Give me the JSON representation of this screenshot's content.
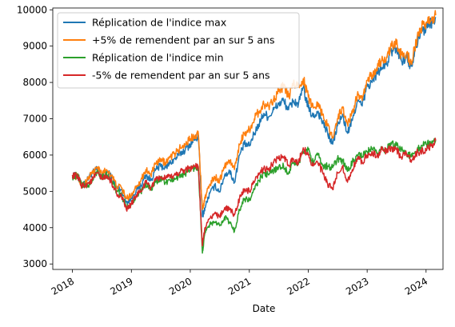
{
  "chart_data": {
    "type": "line",
    "title": "",
    "xlabel": "Date",
    "ylabel": "",
    "x_axis_kind": "date",
    "xlim": [
      "2017-09-01",
      "2024-04-15"
    ],
    "ylim": [
      2850,
      10050
    ],
    "x_ticks": [
      {
        "date": "2018-01-01",
        "label": "2018"
      },
      {
        "date": "2019-01-01",
        "label": "2019"
      },
      {
        "date": "2020-01-01",
        "label": "2020"
      },
      {
        "date": "2021-01-01",
        "label": "2021"
      },
      {
        "date": "2022-01-01",
        "label": "2022"
      },
      {
        "date": "2023-01-01",
        "label": "2023"
      },
      {
        "date": "2024-01-01",
        "label": "2024"
      }
    ],
    "y_ticks": [
      3000,
      4000,
      5000,
      6000,
      7000,
      8000,
      9000,
      10000
    ],
    "grid": false,
    "legend_position": "upper-left",
    "series": [
      {
        "name": "Réplication de l'indice max",
        "color": "#1f77b4",
        "x": [
          "2018-01-01",
          "2018-02-01",
          "2018-03-01",
          "2018-04-01",
          "2018-05-01",
          "2018-06-01",
          "2018-07-01",
          "2018-08-01",
          "2018-09-01",
          "2018-10-01",
          "2018-11-01",
          "2018-12-01",
          "2019-01-01",
          "2019-02-01",
          "2019-03-01",
          "2019-04-01",
          "2019-05-01",
          "2019-06-01",
          "2019-07-01",
          "2019-08-01",
          "2019-09-01",
          "2019-10-01",
          "2019-11-01",
          "2019-12-01",
          "2020-01-01",
          "2020-02-01",
          "2020-02-20",
          "2020-03-16",
          "2020-04-01",
          "2020-05-01",
          "2020-06-01",
          "2020-07-01",
          "2020-08-01",
          "2020-09-01",
          "2020-10-01",
          "2020-11-01",
          "2020-12-01",
          "2021-01-01",
          "2021-02-01",
          "2021-03-01",
          "2021-04-01",
          "2021-05-01",
          "2021-06-01",
          "2021-07-01",
          "2021-08-01",
          "2021-09-01",
          "2021-10-01",
          "2021-11-01",
          "2021-12-01",
          "2022-01-01",
          "2022-02-01",
          "2022-03-01",
          "2022-04-01",
          "2022-05-01",
          "2022-06-01",
          "2022-07-01",
          "2022-08-01",
          "2022-09-01",
          "2022-10-01",
          "2022-11-01",
          "2022-12-01",
          "2023-01-01",
          "2023-02-01",
          "2023-03-01",
          "2023-04-01",
          "2023-05-01",
          "2023-06-01",
          "2023-07-01",
          "2023-08-01",
          "2023-09-01",
          "2023-10-01",
          "2023-11-01",
          "2023-12-01",
          "2024-01-01",
          "2024-02-01",
          "2024-03-01"
        ],
        "values": [
          5450,
          5400,
          5150,
          5300,
          5500,
          5600,
          5450,
          5550,
          5400,
          5100,
          5050,
          4700,
          4800,
          5050,
          5150,
          5450,
          5300,
          5600,
          5700,
          5650,
          5800,
          5900,
          6050,
          6150,
          6300,
          6450,
          6500,
          4300,
          4550,
          4950,
          5150,
          5000,
          5450,
          5550,
          5250,
          6000,
          6300,
          6250,
          6600,
          6850,
          7150,
          7050,
          7250,
          7400,
          7500,
          7250,
          7500,
          7400,
          7850,
          7300,
          7050,
          7200,
          6900,
          6600,
          6300,
          6800,
          7100,
          6600,
          6950,
          7500,
          7350,
          7900,
          8000,
          8250,
          8400,
          8500,
          8850,
          8950,
          8600,
          8700,
          8450,
          9050,
          9400,
          9500,
          9650,
          9800
        ]
      },
      {
        "name": "+5% de remendent par an sur 5 ans",
        "color": "#ff7f0e",
        "x": [
          "2018-01-01",
          "2018-02-01",
          "2018-03-01",
          "2018-04-01",
          "2018-05-01",
          "2018-06-01",
          "2018-07-01",
          "2018-08-01",
          "2018-09-01",
          "2018-10-01",
          "2018-11-01",
          "2018-12-01",
          "2019-01-01",
          "2019-02-01",
          "2019-03-01",
          "2019-04-01",
          "2019-05-01",
          "2019-06-01",
          "2019-07-01",
          "2019-08-01",
          "2019-09-01",
          "2019-10-01",
          "2019-11-01",
          "2019-12-01",
          "2020-01-01",
          "2020-02-01",
          "2020-02-20",
          "2020-03-16",
          "2020-04-01",
          "2020-05-01",
          "2020-06-01",
          "2020-07-01",
          "2020-08-01",
          "2020-09-01",
          "2020-10-01",
          "2020-11-01",
          "2020-12-01",
          "2021-01-01",
          "2021-02-01",
          "2021-03-01",
          "2021-04-01",
          "2021-05-01",
          "2021-06-01",
          "2021-07-01",
          "2021-08-01",
          "2021-09-01",
          "2021-10-01",
          "2021-11-01",
          "2021-12-01",
          "2022-01-01",
          "2022-02-01",
          "2022-03-01",
          "2022-04-01",
          "2022-05-01",
          "2022-06-01",
          "2022-07-01",
          "2022-08-01",
          "2022-09-01",
          "2022-10-01",
          "2022-11-01",
          "2022-12-01",
          "2023-01-01",
          "2023-02-01",
          "2023-03-01",
          "2023-04-01",
          "2023-05-01",
          "2023-06-01",
          "2023-07-01",
          "2023-08-01",
          "2023-09-01",
          "2023-10-01",
          "2023-11-01",
          "2023-12-01",
          "2024-01-01",
          "2024-02-01",
          "2024-03-01"
        ],
        "values": [
          5450,
          5400,
          5150,
          5300,
          5500,
          5650,
          5500,
          5600,
          5450,
          5150,
          5100,
          4800,
          4900,
          5150,
          5300,
          5600,
          5450,
          5750,
          5850,
          5800,
          5950,
          6050,
          6200,
          6300,
          6450,
          6550,
          6600,
          4500,
          4800,
          5200,
          5400,
          5300,
          5700,
          5850,
          5600,
          6300,
          6600,
          6700,
          7000,
          7200,
          7400,
          7350,
          7550,
          7750,
          7900,
          7600,
          7950,
          7900,
          8100,
          7600,
          7300,
          7450,
          7100,
          6800,
          6500,
          7000,
          7300,
          6850,
          7150,
          7650,
          7500,
          8050,
          8200,
          8400,
          8600,
          8700,
          9000,
          9050,
          8750,
          8800,
          8550,
          9100,
          9500,
          9650,
          9700,
          9850
        ]
      },
      {
        "name": "Réplication de l'indice min",
        "color": "#2ca02c",
        "x": [
          "2018-01-01",
          "2018-02-01",
          "2018-03-01",
          "2018-04-01",
          "2018-05-01",
          "2018-06-01",
          "2018-07-01",
          "2018-08-01",
          "2018-09-01",
          "2018-10-01",
          "2018-11-01",
          "2018-12-01",
          "2019-01-01",
          "2019-02-01",
          "2019-03-01",
          "2019-04-01",
          "2019-05-01",
          "2019-06-01",
          "2019-07-01",
          "2019-08-01",
          "2019-09-01",
          "2019-10-01",
          "2019-11-01",
          "2019-12-01",
          "2020-01-01",
          "2020-02-01",
          "2020-02-20",
          "2020-03-16",
          "2020-04-01",
          "2020-05-01",
          "2020-06-01",
          "2020-07-01",
          "2020-08-01",
          "2020-09-01",
          "2020-10-01",
          "2020-11-01",
          "2020-12-01",
          "2021-01-01",
          "2021-02-01",
          "2021-03-01",
          "2021-04-01",
          "2021-05-01",
          "2021-06-01",
          "2021-07-01",
          "2021-08-01",
          "2021-09-01",
          "2021-10-01",
          "2021-11-01",
          "2021-12-01",
          "2022-01-01",
          "2022-02-01",
          "2022-03-01",
          "2022-04-01",
          "2022-05-01",
          "2022-06-01",
          "2022-07-01",
          "2022-08-01",
          "2022-09-01",
          "2022-10-01",
          "2022-11-01",
          "2022-12-01",
          "2023-01-01",
          "2023-02-01",
          "2023-03-01",
          "2023-04-01",
          "2023-05-01",
          "2023-06-01",
          "2023-07-01",
          "2023-08-01",
          "2023-09-01",
          "2023-10-01",
          "2023-11-01",
          "2023-12-01",
          "2024-01-01",
          "2024-02-01",
          "2024-03-01"
        ],
        "values": [
          5400,
          5450,
          5200,
          5150,
          5250,
          5550,
          5400,
          5450,
          5300,
          5000,
          4900,
          4550,
          4650,
          4900,
          5000,
          5200,
          5050,
          5250,
          5350,
          5250,
          5300,
          5350,
          5450,
          5500,
          5600,
          5650,
          5650,
          3300,
          3850,
          4100,
          4150,
          4050,
          4300,
          4150,
          3900,
          4500,
          4800,
          4750,
          5050,
          5300,
          5500,
          5450,
          5600,
          5650,
          5700,
          5500,
          5800,
          5750,
          6100,
          6150,
          5800,
          6000,
          5700,
          5700,
          5650,
          5900,
          5850,
          5550,
          5800,
          6000,
          5950,
          6100,
          6150,
          6050,
          6200,
          6150,
          6300,
          6300,
          6150,
          6050,
          5950,
          6100,
          6250,
          6300,
          6350,
          6400
        ]
      },
      {
        "name": "-5% de remendent par an sur 5 ans",
        "color": "#d62728",
        "x": [
          "2018-01-01",
          "2018-02-01",
          "2018-03-01",
          "2018-04-01",
          "2018-05-01",
          "2018-06-01",
          "2018-07-01",
          "2018-08-01",
          "2018-09-01",
          "2018-10-01",
          "2018-11-01",
          "2018-12-01",
          "2019-01-01",
          "2019-02-01",
          "2019-03-01",
          "2019-04-01",
          "2019-05-01",
          "2019-06-01",
          "2019-07-01",
          "2019-08-01",
          "2019-09-01",
          "2019-10-01",
          "2019-11-01",
          "2019-12-01",
          "2020-01-01",
          "2020-02-01",
          "2020-02-20",
          "2020-03-16",
          "2020-04-01",
          "2020-05-01",
          "2020-06-01",
          "2020-07-01",
          "2020-08-01",
          "2020-09-01",
          "2020-10-01",
          "2020-11-01",
          "2020-12-01",
          "2021-01-01",
          "2021-02-01",
          "2021-03-01",
          "2021-04-01",
          "2021-05-01",
          "2021-06-01",
          "2021-07-01",
          "2021-08-01",
          "2021-09-01",
          "2021-10-01",
          "2021-11-01",
          "2021-12-01",
          "2022-01-01",
          "2022-02-01",
          "2022-03-01",
          "2022-04-01",
          "2022-05-01",
          "2022-06-01",
          "2022-07-01",
          "2022-08-01",
          "2022-09-01",
          "2022-10-01",
          "2022-11-01",
          "2022-12-01",
          "2023-01-01",
          "2023-02-01",
          "2023-03-01",
          "2023-04-01",
          "2023-05-01",
          "2023-06-01",
          "2023-07-01",
          "2023-08-01",
          "2023-09-01",
          "2023-10-01",
          "2023-11-01",
          "2023-12-01",
          "2024-01-01",
          "2024-02-01",
          "2024-03-01"
        ],
        "values": [
          5450,
          5400,
          5150,
          5200,
          5300,
          5500,
          5350,
          5400,
          5250,
          4950,
          4850,
          4500,
          4650,
          4900,
          5000,
          5250,
          5100,
          5300,
          5400,
          5350,
          5400,
          5450,
          5550,
          5600,
          5650,
          5700,
          5650,
          3500,
          4000,
          4250,
          4400,
          4300,
          4550,
          4500,
          4350,
          4800,
          5050,
          5000,
          5250,
          5450,
          5650,
          5600,
          5800,
          5900,
          5950,
          5700,
          5900,
          5800,
          6200,
          6000,
          5700,
          5800,
          5500,
          5200,
          5050,
          5500,
          5700,
          5250,
          5600,
          5900,
          5800,
          6000,
          6100,
          5950,
          6150,
          6100,
          6200,
          6150,
          5950,
          6050,
          5800,
          6050,
          6100,
          6150,
          6250,
          6400
        ]
      }
    ]
  }
}
